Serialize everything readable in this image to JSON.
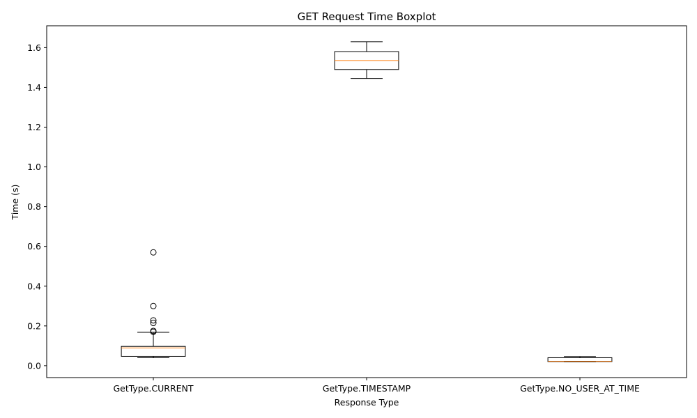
{
  "chart_data": {
    "type": "boxplot",
    "title": "GET Request Time Boxplot",
    "xlabel": "Response Type",
    "ylabel": "Time (s)",
    "ylim": [
      -0.06,
      1.71
    ],
    "yticks": [
      0.0,
      0.2,
      0.4,
      0.6,
      0.8,
      1.0,
      1.2,
      1.4,
      1.6
    ],
    "ytick_labels": [
      "0.0",
      "0.2",
      "0.4",
      "0.6",
      "0.8",
      "1.0",
      "1.2",
      "1.4",
      "1.6"
    ],
    "categories": [
      "GetType.CURRENT",
      "GetType.TIMESTAMP",
      "GetType.NO_USER_AT_TIME"
    ],
    "grid": false,
    "colors": {
      "box": "#000000",
      "median": "#ff7f0e",
      "flier": "#000000"
    },
    "boxes": [
      {
        "whisker_low": 0.04,
        "q1": 0.047,
        "median": 0.089,
        "q3": 0.097,
        "whisker_high": 0.168,
        "fliers": [
          0.17,
          0.175,
          0.215,
          0.228,
          0.3,
          0.57
        ]
      },
      {
        "whisker_low": 1.445,
        "q1": 1.49,
        "median": 1.535,
        "q3": 1.58,
        "whisker_high": 1.63,
        "fliers": []
      },
      {
        "whisker_low": 0.019,
        "q1": 0.02,
        "median": 0.022,
        "q3": 0.04,
        "whisker_high": 0.046,
        "fliers": []
      }
    ]
  }
}
